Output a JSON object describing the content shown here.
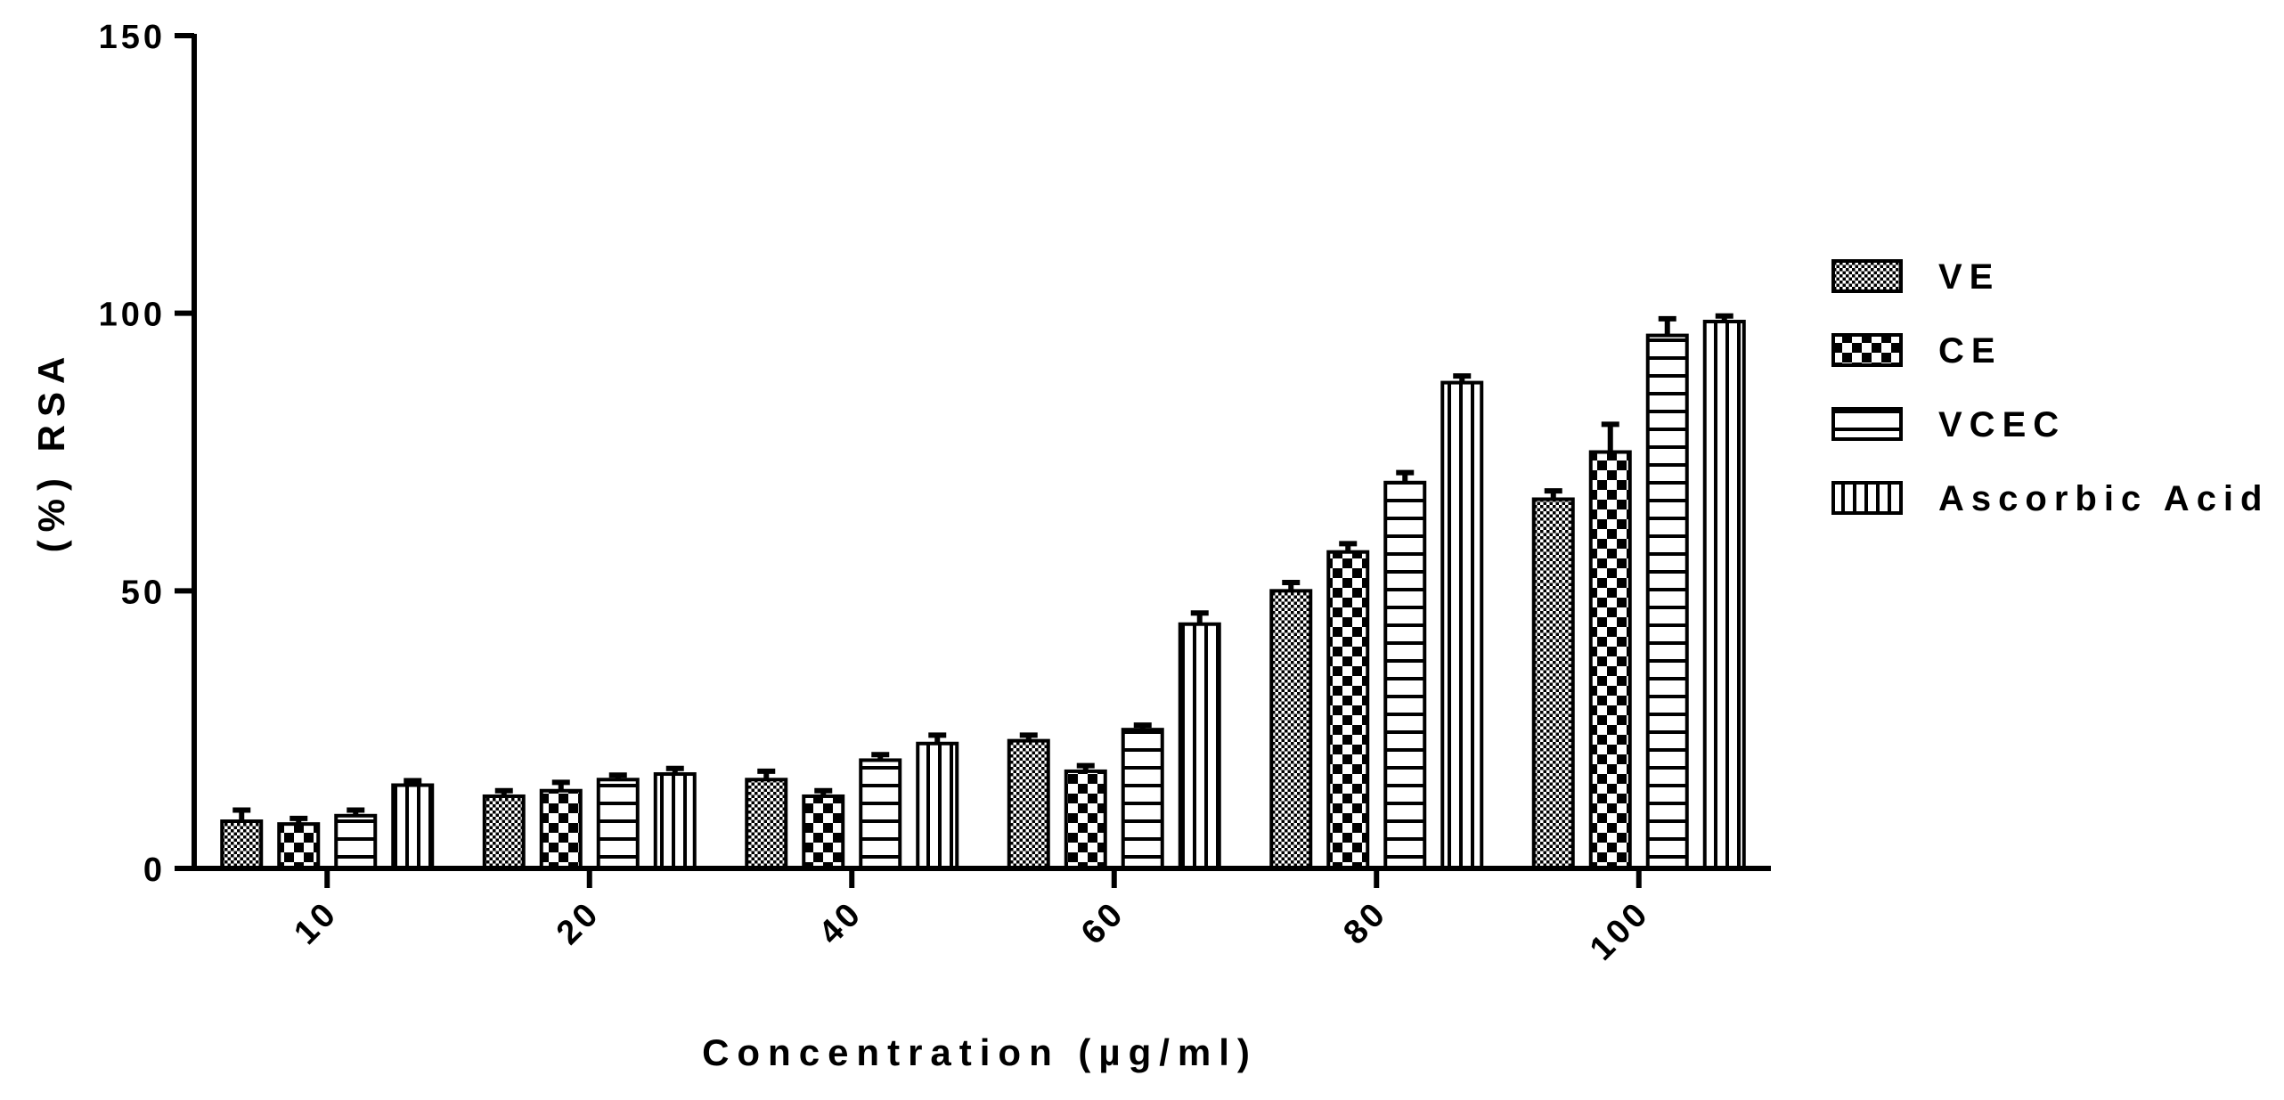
{
  "chart_data": {
    "type": "bar",
    "title": "",
    "xlabel": "Concentration (µg/ml)",
    "ylabel": "(%) RSA",
    "ylim": [
      0,
      150
    ],
    "yticks": [
      "0",
      "50",
      "100",
      "150"
    ],
    "categories": [
      "10",
      "20",
      "40",
      "60",
      "80",
      "100"
    ],
    "series": [
      {
        "name": "VE",
        "pattern": "dots",
        "values": [
          8.5,
          13,
          16,
          23,
          50,
          66.5
        ],
        "errors": [
          2,
          1,
          1.5,
          1,
          1.5,
          1.5
        ]
      },
      {
        "name": "CE",
        "pattern": "checker",
        "values": [
          8,
          14,
          13,
          17.5,
          57,
          75
        ],
        "errors": [
          1,
          1.5,
          1,
          1,
          1.5,
          5
        ]
      },
      {
        "name": "VCEC",
        "pattern": "hlines",
        "values": [
          9.5,
          16,
          19.5,
          25,
          69.5,
          96
        ],
        "errors": [
          1,
          0.8,
          1,
          0.8,
          1.8,
          3
        ]
      },
      {
        "name": "Ascorbic Acid",
        "pattern": "vlines",
        "values": [
          15,
          17,
          22.5,
          44,
          87.5,
          98.5
        ],
        "errors": [
          0.8,
          1,
          1.5,
          2,
          1.2,
          1
        ]
      }
    ],
    "legend_position": "right"
  }
}
